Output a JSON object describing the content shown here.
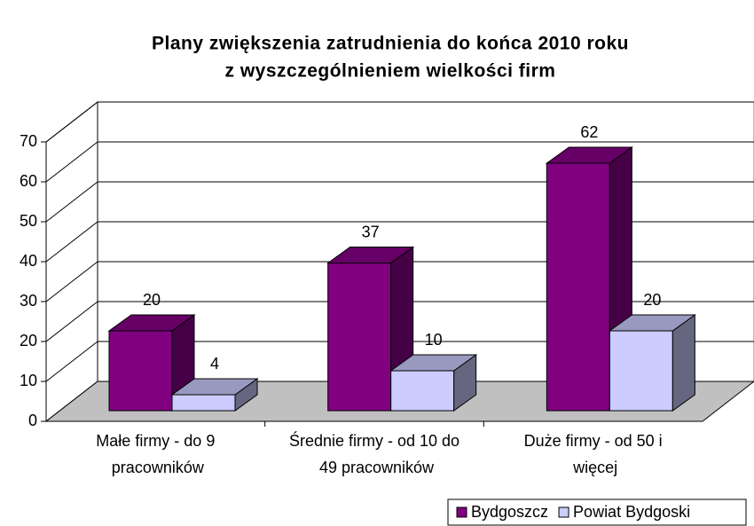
{
  "chart_data": {
    "type": "bar3d",
    "title": "Plany zwiększenia zatrudnienia do końca 2010 roku",
    "subtitle": "z wyszczególnieniem wielkości firm",
    "categories": [
      "Małe firmy - do 9 pracowników",
      "Średnie firmy - od 10 do 49 pracowników",
      "Duże firmy - od 50 i więcej"
    ],
    "series": [
      {
        "name": "Bydgoszcz",
        "color": "#800080",
        "values": [
          20,
          37,
          62
        ]
      },
      {
        "name": "Powiat Bydgoski",
        "color": "#ccccff",
        "values": [
          4,
          10,
          20
        ]
      }
    ],
    "ylim": [
      0,
      70
    ],
    "yticks": [
      0,
      10,
      20,
      30,
      40,
      50,
      60,
      70
    ],
    "grid": true,
    "legend": "bottom-right"
  }
}
